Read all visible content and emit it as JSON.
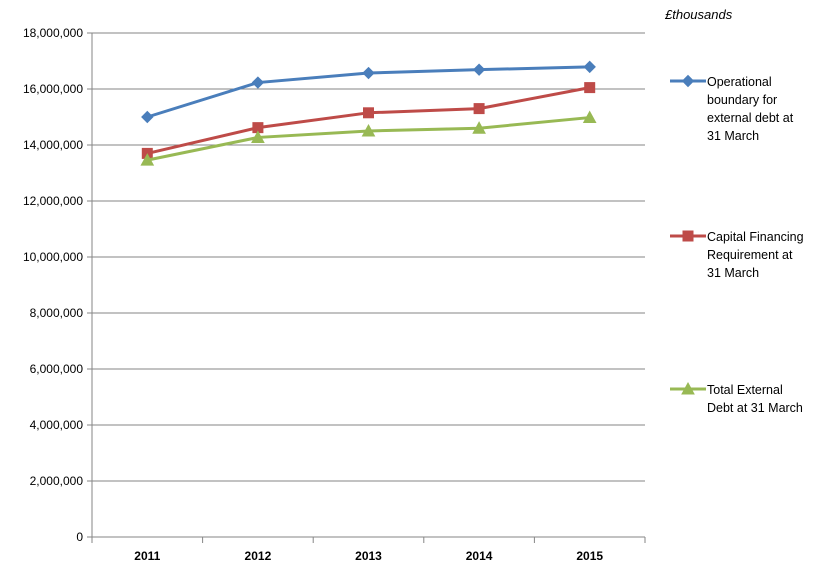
{
  "chart_data": {
    "type": "line",
    "unit_label": "£thousands",
    "x": [
      "2011",
      "2012",
      "2013",
      "2014",
      "2015"
    ],
    "ylim": [
      0,
      18000000
    ],
    "yticks": [
      0,
      2000000,
      4000000,
      6000000,
      8000000,
      10000000,
      12000000,
      14000000,
      16000000,
      18000000
    ],
    "ytick_labels": [
      "0",
      "2,000,000",
      "4,000,000",
      "6,000,000",
      "8,000,000",
      "10,000,000",
      "12,000,000",
      "14,000,000",
      "16,000,000",
      "18,000,000"
    ],
    "grid": "horizontal",
    "legend_position": "right",
    "series": [
      {
        "name": "Operational boundary for external debt at 31 March",
        "legend_lines": [
          "Operational",
          "boundary for",
          "external debt at",
          "31 March"
        ],
        "color": "#4a7ebb",
        "marker": "diamond",
        "values": [
          15000000,
          16230000,
          16570000,
          16690000,
          16790000
        ]
      },
      {
        "name": "Capital Financing Requirement at 31 March",
        "legend_lines": [
          "Capital Financing",
          "Requirement at",
          "31 March"
        ],
        "color": "#be4b48",
        "marker": "square",
        "values": [
          13700000,
          14620000,
          15150000,
          15300000,
          16050000
        ]
      },
      {
        "name": "Total External Debt at 31 March",
        "legend_lines": [
          "Total External",
          "Debt at 31 March"
        ],
        "color": "#98b954",
        "marker": "triangle",
        "values": [
          13460000,
          14270000,
          14500000,
          14600000,
          14980000
        ]
      }
    ]
  }
}
